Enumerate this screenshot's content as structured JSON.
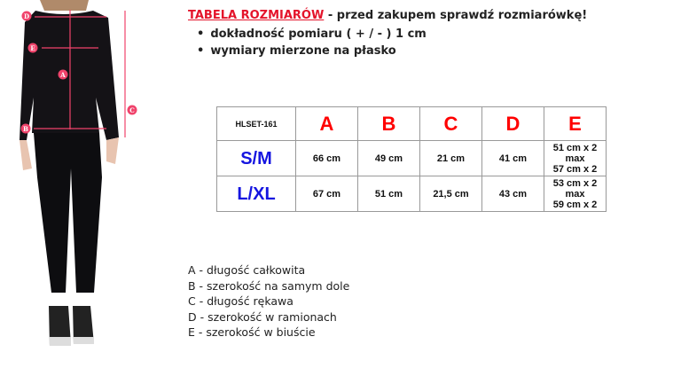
{
  "header": {
    "title": "TABELA ROZMIARÓW",
    "subtitle": " - przed zakupem sprawdź rozmiarówkę!"
  },
  "bullets": [
    "dokładność pomiaru ( + / - ) 1 cm",
    "wymiary mierzone na płasko"
  ],
  "figure": {
    "markers": [
      "A",
      "B",
      "C",
      "D",
      "E"
    ],
    "accent": "#f0436b"
  },
  "table": {
    "code": "HLSET-161",
    "columns": [
      "A",
      "B",
      "C",
      "D",
      "E"
    ],
    "rows": [
      {
        "size": "S/M",
        "values": [
          "66 cm",
          "49 cm",
          "21 cm",
          "41 cm"
        ],
        "e": [
          "51 cm x 2",
          "max",
          "57 cm x 2"
        ]
      },
      {
        "size": "L/XL",
        "values": [
          "67 cm",
          "51 cm",
          "21,5 cm",
          "43 cm"
        ],
        "e": [
          "53 cm x 2",
          "max",
          "59 cm x 2"
        ]
      }
    ]
  },
  "legend": [
    {
      "key": "A",
      "text": " - długość całkowita"
    },
    {
      "key": "B",
      "text": " - szerokość na samym dole"
    },
    {
      "key": "C",
      "text": " - długość rękawa"
    },
    {
      "key": "D",
      "text": " - szerokość w ramionach"
    },
    {
      "key": "E",
      "text": " - szerokość w biuście"
    }
  ]
}
